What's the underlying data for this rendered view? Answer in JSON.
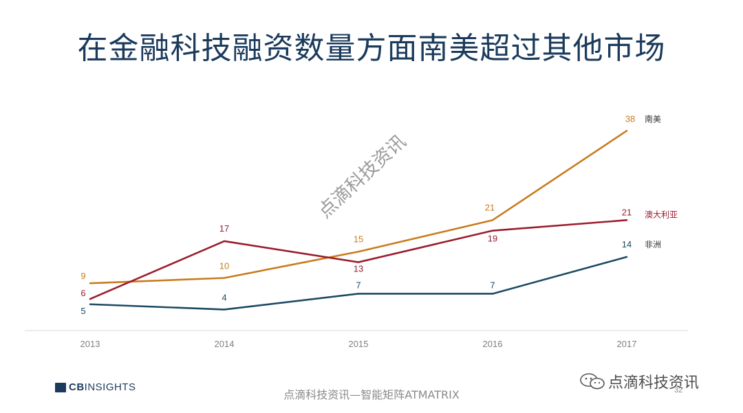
{
  "slide": {
    "title": "在金融科技融资数量方面南美超过其他市场",
    "watermark": "点滴科技资讯",
    "footer_text": "点滴科技资讯—智能矩阵ATMATRIX",
    "logo_bold": "CB",
    "logo_rest": "INSIGHTS",
    "wechat_label": "点滴科技资讯",
    "page_number": "32"
  },
  "chart_data": {
    "type": "line",
    "title": "在金融科技融资数量方面南美超过其他市场",
    "categories": [
      "2013",
      "2014",
      "2015",
      "2016",
      "2017"
    ],
    "ylim": [
      0,
      40
    ],
    "grid": false,
    "legend": "end-labels",
    "series": [
      {
        "name": "南美",
        "color": "#c97b1c",
        "values": [
          9,
          10,
          15,
          21,
          38
        ]
      },
      {
        "name": "澳大利亚",
        "color": "#9b1c2e",
        "values": [
          6,
          17,
          13,
          19,
          21
        ]
      },
      {
        "name": "非洲",
        "color": "#1b4a63",
        "values": [
          5,
          4,
          7,
          7,
          14
        ]
      }
    ]
  }
}
